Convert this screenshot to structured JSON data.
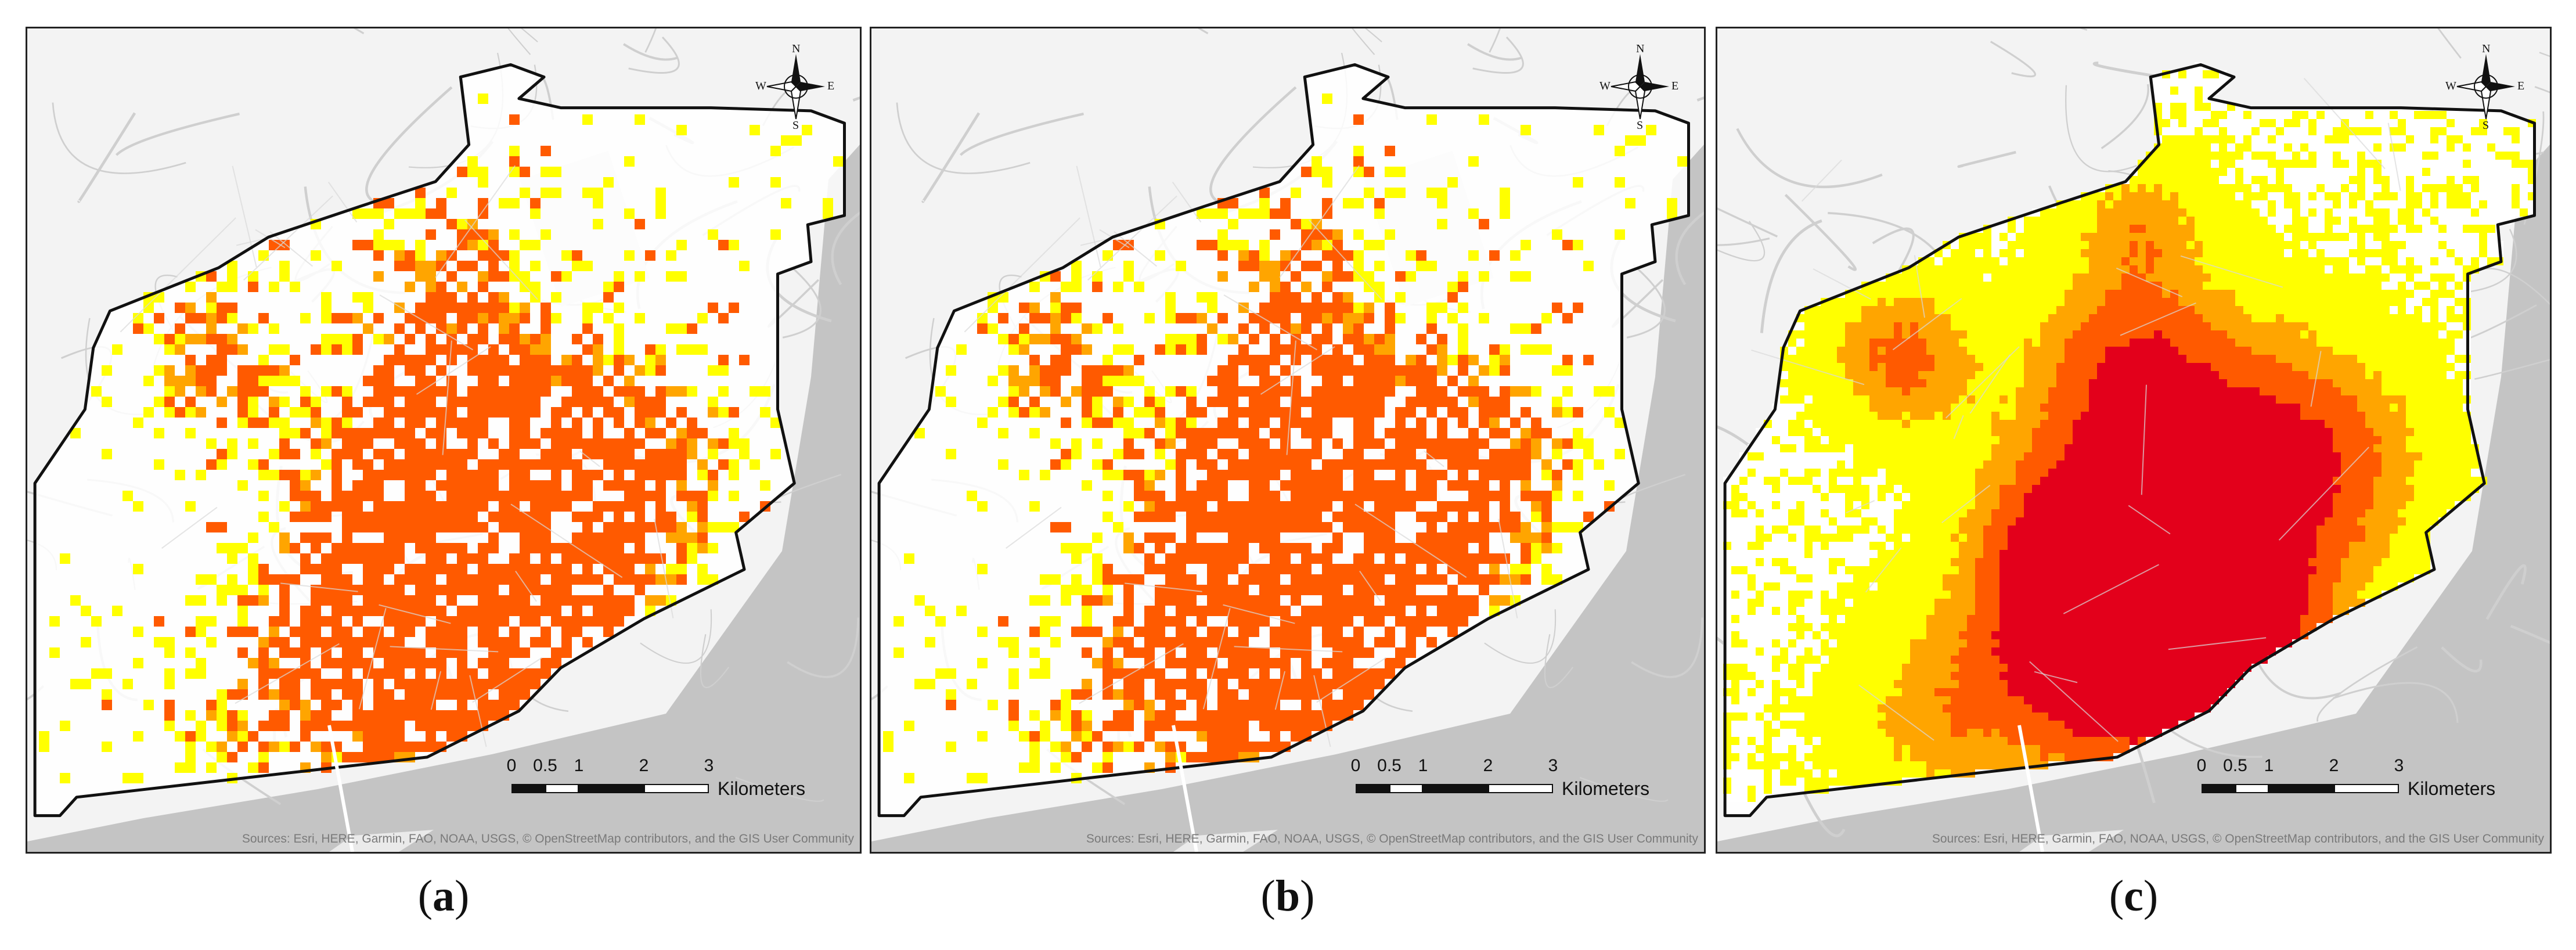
{
  "captions": [
    {
      "open": "(",
      "letter": "a",
      "close": ")"
    },
    {
      "open": "(",
      "letter": "b",
      "close": ")"
    },
    {
      "open": "(",
      "letter": "c",
      "close": ")"
    }
  ],
  "scale": {
    "ticks": [
      "0",
      "0.5",
      "1",
      "2",
      "3"
    ],
    "unit": "Kilometers"
  },
  "compass": {
    "n": "N",
    "s": "S",
    "e": "E",
    "w": "W"
  },
  "sources": "Sources: Esri, HERE, Garmin, FAO, NOAA, USGS, © OpenStreetMap contributors, and the GIS User Community",
  "colors": {
    "water": "#c4c4c4",
    "land": "#f3f3f3",
    "roads": "#cfcfcf",
    "boundary": "#111111",
    "low": "#ffff00",
    "medium": "#ffa500",
    "high": "#ff5a00",
    "very_high": "#e3001b"
  },
  "panels": [
    {
      "id": "a",
      "style": "cells"
    },
    {
      "id": "b",
      "style": "cells"
    },
    {
      "id": "c",
      "style": "smooth"
    }
  ]
}
